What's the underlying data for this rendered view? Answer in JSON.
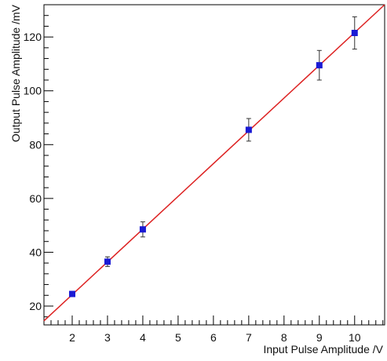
{
  "chart_data": {
    "type": "scatter",
    "xlabel": "Input Pulse Amplitude /V",
    "ylabel": "Output Pulse Amplitude /mV",
    "xlim": [
      1.2,
      10.85
    ],
    "ylim": [
      13,
      132
    ],
    "x_ticks": [
      2,
      3,
      4,
      5,
      6,
      7,
      8,
      9,
      10
    ],
    "y_ticks": [
      20,
      40,
      60,
      80,
      100,
      120
    ],
    "grid": false,
    "points": [
      {
        "x": 2,
        "y": 24.5,
        "yerr": 0.8
      },
      {
        "x": 3,
        "y": 36.5,
        "yerr": 1.8
      },
      {
        "x": 4,
        "y": 48.5,
        "yerr": 2.8
      },
      {
        "x": 7,
        "y": 85.5,
        "yerr": 4.2
      },
      {
        "x": 9,
        "y": 109.5,
        "yerr": 5.5
      },
      {
        "x": 10,
        "y": 121.5,
        "yerr": 6.0
      }
    ],
    "fit_line": {
      "x": [
        1.2,
        10.85
      ],
      "y": [
        14.5,
        132
      ]
    },
    "colors": {
      "marker": "#1a1ad4",
      "fit": "#dd2222",
      "errorbar": "#333333",
      "axis": "#000000"
    }
  }
}
